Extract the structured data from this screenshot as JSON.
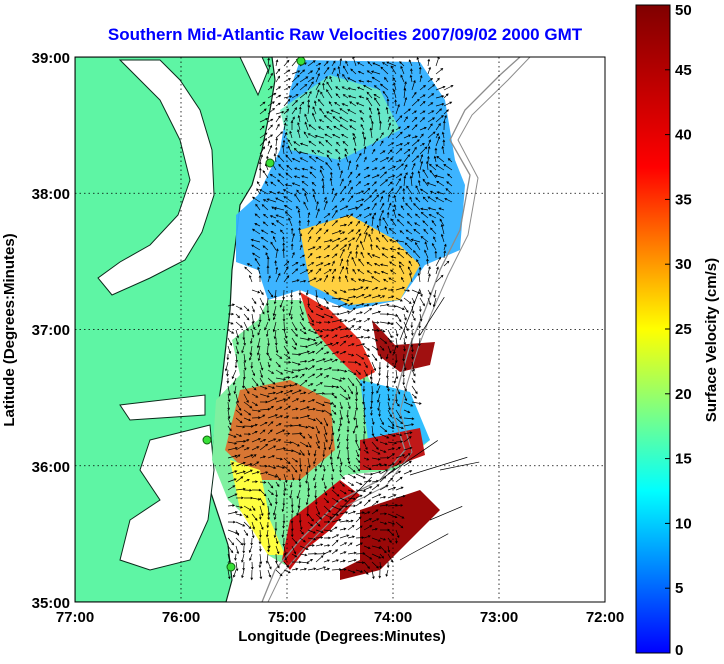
{
  "chart_data": {
    "type": "heatmap",
    "title": "Southern Mid-Atlantic Raw Velocities 2007/09/02 2000 GMT",
    "xlabel": "Longitude (Degrees:Minutes)",
    "ylabel": "Latitude (Degrees:Minutes)",
    "x_ticks": [
      "77:00",
      "76:00",
      "75:00",
      "74:00",
      "73:00",
      "72:00"
    ],
    "y_ticks": [
      "39:00",
      "38:00",
      "37:00",
      "36:00",
      "35:00"
    ],
    "xlim": [
      -77,
      -72
    ],
    "ylim": [
      35,
      39
    ],
    "grid": true,
    "colorbar": {
      "label": "Surface Velocity (cm/s)",
      "ticks": [
        "50",
        "45",
        "40",
        "35",
        "30",
        "25",
        "20",
        "15",
        "10",
        "5",
        "0"
      ],
      "range": [
        0,
        50
      ]
    },
    "colors": {
      "title": "#0000ff",
      "land": "#5ef5a4",
      "coastline": "#0a2a1a",
      "isobath": "#8c8c8c",
      "vectors": "#000000",
      "stations": "#38e038"
    }
  }
}
